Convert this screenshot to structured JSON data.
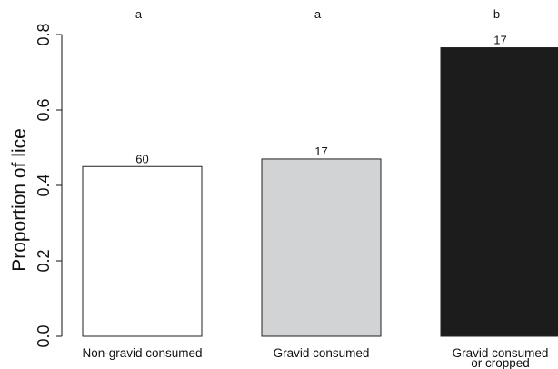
{
  "chart_data": {
    "type": "bar",
    "title": "",
    "xlabel": "",
    "ylabel": "Proportion of lice",
    "ylim": [
      0,
      0.8
    ],
    "yticks": [
      "0.0",
      "0.2",
      "0.4",
      "0.6",
      "0.8"
    ],
    "grid": false,
    "categories": [
      {
        "lines": [
          "Non-gravid consumed"
        ],
        "value": 0.45,
        "n_label": "60",
        "group_label": "a",
        "fill": "#ffffff"
      },
      {
        "lines": [
          "Gravid consumed"
        ],
        "value": 0.47,
        "n_label": "17",
        "group_label": "a",
        "fill": "#d2d3d4"
      },
      {
        "lines": [
          "Gravid consumed",
          "or cropped"
        ],
        "value": 0.765,
        "n_label": "17",
        "group_label": "b",
        "fill": "#1c1c1c"
      }
    ]
  }
}
